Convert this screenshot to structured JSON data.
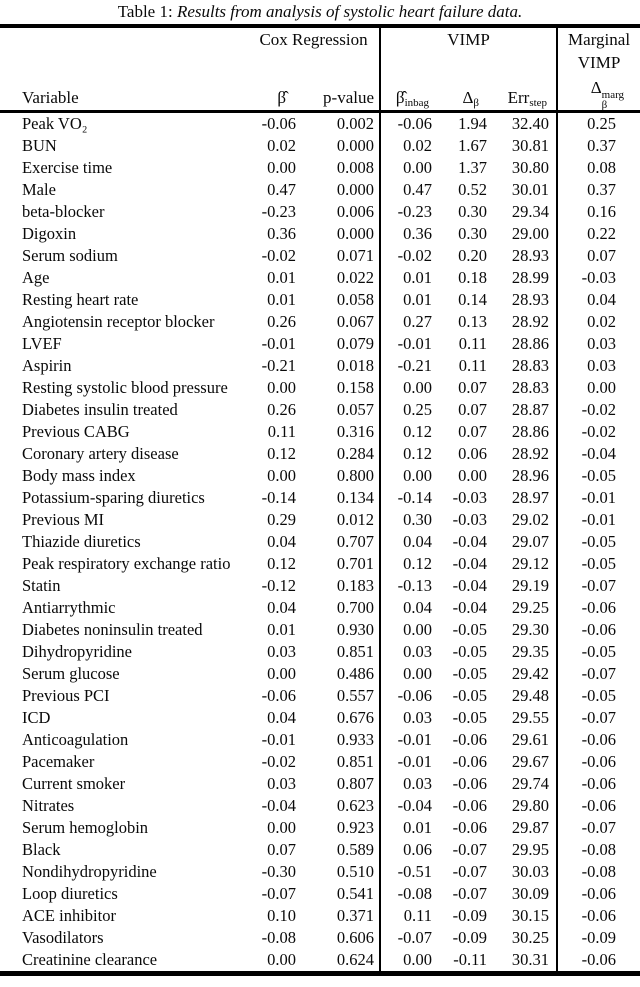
{
  "caption": {
    "prefix": "Table 1:",
    "title": "Results from analysis of systolic heart failure data."
  },
  "table": {
    "group_headers": {
      "cox": "Cox Regression",
      "vimp": "VIMP",
      "marginal_line1": "Marginal",
      "marginal_line2": "VIMP"
    },
    "sub_headers": {
      "variable": "Variable",
      "beta_hat": "β̂",
      "p_value": "p-value",
      "beta_inbag_main": "β̂",
      "beta_inbag_sub": "inbag",
      "delta_main": "Δ",
      "delta_sub": "β",
      "err_main": "Err",
      "err_sub": "step",
      "marg_main": "Δ",
      "marg_sup": "marg",
      "marg_sub": "β"
    },
    "columns": [
      "variable",
      "beta",
      "p_value",
      "beta_inbag",
      "delta_beta",
      "err_step",
      "marginal_vimp"
    ],
    "rows": [
      [
        "Peak VO₂",
        "-0.06",
        "0.002",
        "-0.06",
        "1.94",
        "32.40",
        "0.25"
      ],
      [
        "BUN",
        "0.02",
        "0.000",
        "0.02",
        "1.67",
        "30.81",
        "0.37"
      ],
      [
        "Exercise time",
        "0.00",
        "0.008",
        "0.00",
        "1.37",
        "30.80",
        "0.08"
      ],
      [
        "Male",
        "0.47",
        "0.000",
        "0.47",
        "0.52",
        "30.01",
        "0.37"
      ],
      [
        "beta-blocker",
        "-0.23",
        "0.006",
        "-0.23",
        "0.30",
        "29.34",
        "0.16"
      ],
      [
        "Digoxin",
        "0.36",
        "0.000",
        "0.36",
        "0.30",
        "29.00",
        "0.22"
      ],
      [
        "Serum sodium",
        "-0.02",
        "0.071",
        "-0.02",
        "0.20",
        "28.93",
        "0.07"
      ],
      [
        "Age",
        "0.01",
        "0.022",
        "0.01",
        "0.18",
        "28.99",
        "-0.03"
      ],
      [
        "Resting heart rate",
        "0.01",
        "0.058",
        "0.01",
        "0.14",
        "28.93",
        "0.04"
      ],
      [
        "Angiotensin receptor blocker",
        "0.26",
        "0.067",
        "0.27",
        "0.13",
        "28.92",
        "0.02"
      ],
      [
        "LVEF",
        "-0.01",
        "0.079",
        "-0.01",
        "0.11",
        "28.86",
        "0.03"
      ],
      [
        "Aspirin",
        "-0.21",
        "0.018",
        "-0.21",
        "0.11",
        "28.83",
        "0.03"
      ],
      [
        "Resting systolic blood pressure",
        "0.00",
        "0.158",
        "0.00",
        "0.07",
        "28.83",
        "0.00"
      ],
      [
        "Diabetes insulin treated",
        "0.26",
        "0.057",
        "0.25",
        "0.07",
        "28.87",
        "-0.02"
      ],
      [
        "Previous CABG",
        "0.11",
        "0.316",
        "0.12",
        "0.07",
        "28.86",
        "-0.02"
      ],
      [
        "Coronary artery disease",
        "0.12",
        "0.284",
        "0.12",
        "0.06",
        "28.92",
        "-0.04"
      ],
      [
        "Body mass index",
        "0.00",
        "0.800",
        "0.00",
        "0.00",
        "28.96",
        "-0.05"
      ],
      [
        "Potassium-sparing diuretics",
        "-0.14",
        "0.134",
        "-0.14",
        "-0.03",
        "28.97",
        "-0.01"
      ],
      [
        "Previous MI",
        "0.29",
        "0.012",
        "0.30",
        "-0.03",
        "29.02",
        "-0.01"
      ],
      [
        "Thiazide diuretics",
        "0.04",
        "0.707",
        "0.04",
        "-0.04",
        "29.07",
        "-0.05"
      ],
      [
        "Peak respiratory exchange ratio",
        "0.12",
        "0.701",
        "0.12",
        "-0.04",
        "29.12",
        "-0.05"
      ],
      [
        "Statin",
        "-0.12",
        "0.183",
        "-0.13",
        "-0.04",
        "29.19",
        "-0.07"
      ],
      [
        "Antiarrythmic",
        "0.04",
        "0.700",
        "0.04",
        "-0.04",
        "29.25",
        "-0.06"
      ],
      [
        "Diabetes noninsulin treated",
        "0.01",
        "0.930",
        "0.00",
        "-0.05",
        "29.30",
        "-0.06"
      ],
      [
        "Dihydropyridine",
        "0.03",
        "0.851",
        "0.03",
        "-0.05",
        "29.35",
        "-0.05"
      ],
      [
        "Serum glucose",
        "0.00",
        "0.486",
        "0.00",
        "-0.05",
        "29.42",
        "-0.07"
      ],
      [
        "Previous PCI",
        "-0.06",
        "0.557",
        "-0.06",
        "-0.05",
        "29.48",
        "-0.05"
      ],
      [
        "ICD",
        "0.04",
        "0.676",
        "0.03",
        "-0.05",
        "29.55",
        "-0.07"
      ],
      [
        "Anticoagulation",
        "-0.01",
        "0.933",
        "-0.01",
        "-0.06",
        "29.61",
        "-0.06"
      ],
      [
        "Pacemaker",
        "-0.02",
        "0.851",
        "-0.01",
        "-0.06",
        "29.67",
        "-0.06"
      ],
      [
        "Current smoker",
        "0.03",
        "0.807",
        "0.03",
        "-0.06",
        "29.74",
        "-0.06"
      ],
      [
        "Nitrates",
        "-0.04",
        "0.623",
        "-0.04",
        "-0.06",
        "29.80",
        "-0.06"
      ],
      [
        "Serum hemoglobin",
        "0.00",
        "0.923",
        "0.01",
        "-0.06",
        "29.87",
        "-0.07"
      ],
      [
        "Black",
        "0.07",
        "0.589",
        "0.06",
        "-0.07",
        "29.95",
        "-0.08"
      ],
      [
        "Nondihydropyridine",
        "-0.30",
        "0.510",
        "-0.51",
        "-0.07",
        "30.03",
        "-0.08"
      ],
      [
        "Loop diuretics",
        "-0.07",
        "0.541",
        "-0.08",
        "-0.07",
        "30.09",
        "-0.06"
      ],
      [
        "ACE inhibitor",
        "0.10",
        "0.371",
        "0.11",
        "-0.09",
        "30.15",
        "-0.06"
      ],
      [
        "Vasodilators",
        "-0.08",
        "0.606",
        "-0.07",
        "-0.09",
        "30.25",
        "-0.09"
      ],
      [
        "Creatinine clearance",
        "0.00",
        "0.624",
        "0.00",
        "-0.11",
        "30.31",
        "-0.06"
      ]
    ]
  }
}
